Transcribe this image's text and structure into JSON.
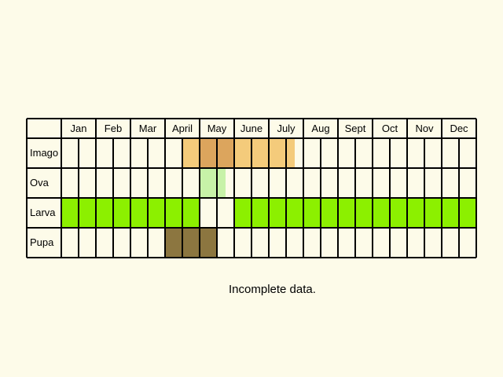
{
  "months": [
    "Jan",
    "Feb",
    "Mar",
    "April",
    "May",
    "June",
    "July",
    "Aug",
    "Sept",
    "Oct",
    "Nov",
    "Dec"
  ],
  "stages": [
    {
      "label": "Imago",
      "cells": [
        {
          "slot": 7,
          "color": "#f4cb7b"
        },
        {
          "slot": 8,
          "color": "#dca55d"
        },
        {
          "slot": 9,
          "color": "#dca55d"
        },
        {
          "slot": 10,
          "color": "#f4cb7b"
        },
        {
          "slot": 11,
          "color": "#f4cb7b"
        },
        {
          "slot": 12,
          "color": "#f4cb7b"
        },
        {
          "slot": 13,
          "color": "#f4cb7b",
          "partial": 0.5
        }
      ]
    },
    {
      "label": "Ova",
      "cells": [
        {
          "slot": 8,
          "color": "#c7f2a8"
        },
        {
          "slot": 9,
          "color": "#c7f2a8",
          "partial": 0.5
        }
      ]
    },
    {
      "label": "Larva",
      "cells": [
        {
          "slot": 0,
          "color": "#8cf000"
        },
        {
          "slot": 1,
          "color": "#8cf000"
        },
        {
          "slot": 2,
          "color": "#8cf000"
        },
        {
          "slot": 3,
          "color": "#8cf000"
        },
        {
          "slot": 4,
          "color": "#8cf000"
        },
        {
          "slot": 5,
          "color": "#8cf000"
        },
        {
          "slot": 6,
          "color": "#8cf000"
        },
        {
          "slot": 7,
          "color": "#8cf000"
        },
        {
          "slot": 10,
          "color": "#8cf000"
        },
        {
          "slot": 11,
          "color": "#8cf000"
        },
        {
          "slot": 12,
          "color": "#8cf000"
        },
        {
          "slot": 13,
          "color": "#8cf000"
        },
        {
          "slot": 14,
          "color": "#8cf000"
        },
        {
          "slot": 15,
          "color": "#8cf000"
        },
        {
          "slot": 16,
          "color": "#8cf000"
        },
        {
          "slot": 17,
          "color": "#8cf000"
        },
        {
          "slot": 18,
          "color": "#8cf000"
        },
        {
          "slot": 19,
          "color": "#8cf000"
        },
        {
          "slot": 20,
          "color": "#8cf000"
        },
        {
          "slot": 21,
          "color": "#8cf000"
        },
        {
          "slot": 22,
          "color": "#8cf000"
        },
        {
          "slot": 23,
          "color": "#8cf000"
        }
      ]
    },
    {
      "label": "Pupa",
      "cells": [
        {
          "slot": 6,
          "color": "#8c7640"
        },
        {
          "slot": 7,
          "color": "#8c7640"
        },
        {
          "slot": 8,
          "color": "#8c7640"
        }
      ]
    }
  ],
  "note": "Incomplete data.",
  "colors": {
    "background": "#fdfbe9",
    "cell_empty": "#fdfbe9",
    "grid_line": "#000000"
  }
}
